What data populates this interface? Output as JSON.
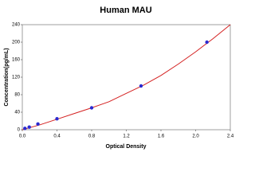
{
  "chart_data": {
    "type": "scatter",
    "title": "Human MAU",
    "x_label": "Optical Density",
    "y_label": "Concentration(pg/mL)",
    "xlim": [
      0,
      2.4
    ],
    "ylim": [
      0,
      240
    ],
    "xticks": [
      {
        "value": 0,
        "label": "0.0"
      },
      0.4,
      0.8,
      1.2,
      1.6,
      {
        "value": 2,
        "label": "2.0"
      },
      2.4
    ],
    "yticks": [
      0,
      40,
      80,
      120,
      160,
      200,
      240
    ],
    "series": [
      {
        "style": "line",
        "color": "#d42020",
        "x": [
          0,
          0.2,
          0.4,
          0.6,
          0.8,
          1.0,
          1.2,
          1.4,
          1.6,
          1.8,
          2.0,
          2.2,
          2.4
        ],
        "values": [
          0,
          11,
          24,
          37,
          50,
          64,
          83,
          102,
          124,
          150,
          178,
          208,
          240
        ]
      },
      {
        "style": "markers",
        "color": "#2a2ad0",
        "x": [
          0.03,
          0.08,
          0.18,
          0.4,
          0.8,
          1.37,
          2.13
        ],
        "values": [
          3,
          6,
          13,
          25,
          50,
          100,
          200
        ]
      }
    ]
  }
}
